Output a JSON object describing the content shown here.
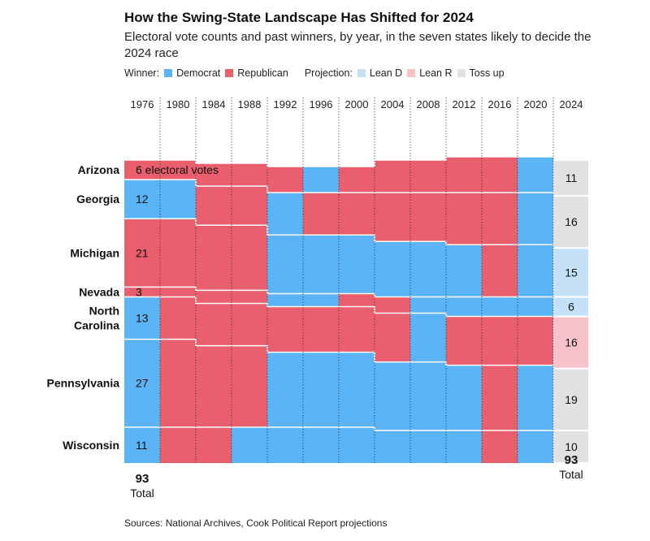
{
  "title": "How the Swing-State Landscape Has Shifted for 2024",
  "subtitle": "Electoral vote counts and past winners, by year, in the seven states likely to decide the 2024 race",
  "legend": {
    "winner_label": "Winner:",
    "democrat": "Democrat",
    "republican": "Republican",
    "projection_label": "Projection:",
    "lean_d": "Lean D",
    "lean_r": "Lean R",
    "toss_up": "Toss up"
  },
  "colors": {
    "democrat": "#5ab4f5",
    "republican": "#ea5f6d",
    "lean_d": "#c4e1f8",
    "lean_r": "#f7c3c8",
    "toss_up": "#e1e1e1"
  },
  "source": "Sources: National Archives, Cook Political Report projections",
  "chart_data": {
    "type": "alluvial",
    "years": [
      "1976",
      "1980",
      "1984",
      "1988",
      "1992",
      "1996",
      "2000",
      "2004",
      "2008",
      "2012",
      "2016",
      "2020",
      "2024"
    ],
    "states": [
      {
        "name": "Arizona",
        "label": "6 electoral votes",
        "votes": [
          6,
          6,
          7,
          7,
          8,
          8,
          8,
          10,
          10,
          11,
          11,
          11,
          11
        ],
        "winners": [
          "R",
          "R",
          "R",
          "R",
          "R",
          "D",
          "R",
          "R",
          "R",
          "R",
          "R",
          "D",
          "toss_up"
        ]
      },
      {
        "name": "Georgia",
        "label": "12",
        "votes": [
          12,
          12,
          12,
          12,
          13,
          13,
          13,
          15,
          15,
          16,
          16,
          16,
          16
        ],
        "winners": [
          "D",
          "D",
          "R",
          "R",
          "D",
          "R",
          "R",
          "R",
          "R",
          "R",
          "R",
          "D",
          "toss_up"
        ]
      },
      {
        "name": "Michigan",
        "label": "21",
        "votes": [
          21,
          21,
          20,
          20,
          18,
          18,
          18,
          17,
          17,
          16,
          16,
          16,
          15
        ],
        "winners": [
          "R",
          "R",
          "R",
          "R",
          "D",
          "D",
          "D",
          "D",
          "D",
          "D",
          "R",
          "D",
          "lean_d"
        ]
      },
      {
        "name": "Nevada",
        "label": "3",
        "votes": [
          3,
          3,
          4,
          4,
          4,
          4,
          4,
          5,
          5,
          6,
          6,
          6,
          6
        ],
        "winners": [
          "R",
          "R",
          "R",
          "R",
          "D",
          "D",
          "R",
          "R",
          "D",
          "D",
          "D",
          "D",
          "lean_d"
        ]
      },
      {
        "name": "North Carolina",
        "label": "13",
        "votes": [
          13,
          13,
          13,
          13,
          14,
          14,
          14,
          15,
          15,
          15,
          15,
          15,
          16
        ],
        "winners": [
          "D",
          "R",
          "R",
          "R",
          "R",
          "R",
          "R",
          "R",
          "D",
          "R",
          "R",
          "R",
          "lean_r"
        ]
      },
      {
        "name": "Pennsylvania",
        "label": "27",
        "votes": [
          27,
          27,
          25,
          25,
          23,
          23,
          23,
          21,
          21,
          20,
          20,
          20,
          19
        ],
        "winners": [
          "D",
          "R",
          "R",
          "R",
          "D",
          "D",
          "D",
          "D",
          "D",
          "D",
          "R",
          "D",
          "toss_up"
        ]
      },
      {
        "name": "Wisconsin",
        "label": "11",
        "votes": [
          11,
          11,
          11,
          11,
          11,
          11,
          11,
          10,
          10,
          10,
          10,
          10,
          10
        ],
        "winners": [
          "D",
          "R",
          "R",
          "D",
          "D",
          "D",
          "D",
          "D",
          "D",
          "D",
          "R",
          "D",
          "toss_up"
        ]
      }
    ],
    "totals": [
      {
        "value": "93",
        "label": "Total"
      },
      {
        "value": "93",
        "label": "Total"
      }
    ]
  }
}
